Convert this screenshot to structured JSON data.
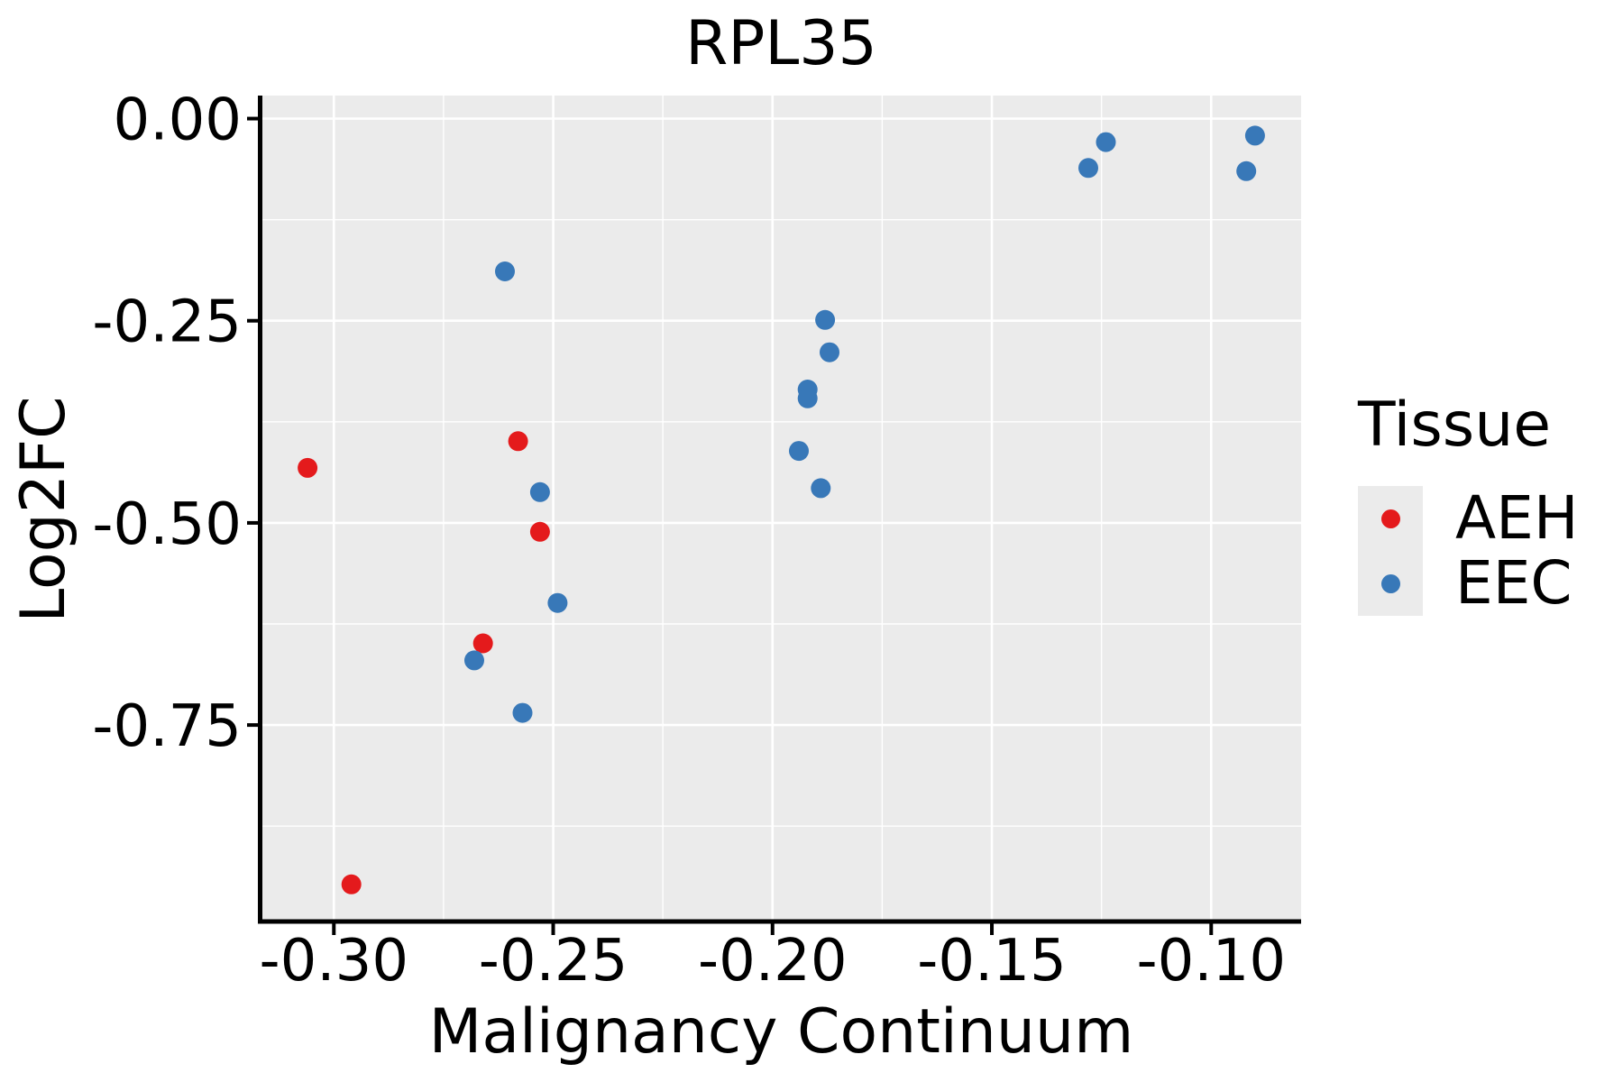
{
  "chart_data": {
    "type": "scatter",
    "title": "RPL35",
    "xlabel": "Malignancy Continuum",
    "ylabel": "Log2FC",
    "legend_title": "Tissue",
    "legend_position": "right",
    "grid": true,
    "panel_bg": "#EBEBEB",
    "grid_color": "#FFFFFF",
    "axis_color": "#000000",
    "text_color": "#000000",
    "xlim": [
      -0.3165,
      -0.0795
    ],
    "ylim": [
      -0.993,
      0.0285
    ],
    "x_ticks": [
      -0.3,
      -0.25,
      -0.2,
      -0.15,
      -0.1
    ],
    "x_tick_labels": [
      "-0.30",
      "-0.25",
      "-0.20",
      "-0.15",
      "-0.10"
    ],
    "x_minor_ticks": [
      -0.275,
      -0.225,
      -0.175,
      -0.125
    ],
    "y_ticks": [
      0.0,
      -0.25,
      -0.5,
      -0.75
    ],
    "y_tick_labels": [
      "0.00",
      "-0.25",
      "-0.50",
      "-0.75"
    ],
    "y_minor_ticks": [
      -0.125,
      -0.375,
      -0.625,
      -0.875
    ],
    "series": [
      {
        "name": "AEH",
        "color": "#E41A1C",
        "points": [
          [
            -0.306,
            -0.432
          ],
          [
            -0.258,
            -0.399
          ],
          [
            -0.253,
            -0.511
          ],
          [
            -0.266,
            -0.649
          ],
          [
            -0.296,
            -0.947
          ]
        ]
      },
      {
        "name": "EEC",
        "color": "#3878B8",
        "points": [
          [
            -0.261,
            -0.189
          ],
          [
            -0.253,
            -0.462
          ],
          [
            -0.249,
            -0.599
          ],
          [
            -0.268,
            -0.67
          ],
          [
            -0.257,
            -0.735
          ],
          [
            -0.188,
            -0.249
          ],
          [
            -0.187,
            -0.289
          ],
          [
            -0.192,
            -0.335
          ],
          [
            -0.192,
            -0.346
          ],
          [
            -0.194,
            -0.411
          ],
          [
            -0.189,
            -0.457
          ],
          [
            -0.128,
            -0.061
          ],
          [
            -0.124,
            -0.029
          ],
          [
            -0.09,
            -0.021
          ],
          [
            -0.092,
            -0.065
          ]
        ]
      }
    ]
  }
}
